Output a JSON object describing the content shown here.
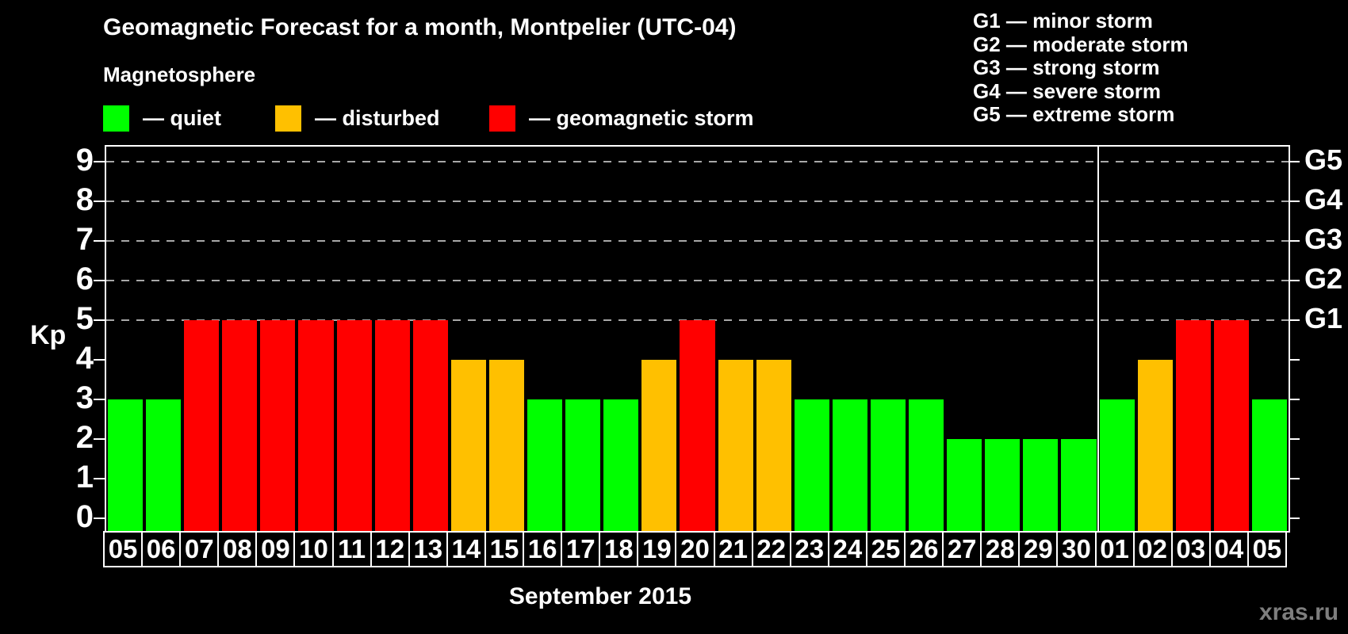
{
  "title": "Geomagnetic Forecast for a month, Montpelier (UTC-04)",
  "magnetosphere_label": "Magnetosphere",
  "legend": {
    "items": [
      {
        "label": "— quiet",
        "status": "quiet"
      },
      {
        "label": "— disturbed",
        "status": "disturbed"
      },
      {
        "label": "— geomagnetic storm",
        "status": "storm"
      }
    ]
  },
  "g_legend": {
    "items": [
      "G1 — minor storm",
      "G2 — moderate storm",
      "G3 — strong storm",
      "G4 — severe storm",
      "G5 — extreme storm"
    ]
  },
  "watermark": "xras.ru",
  "chart_data": {
    "type": "bar",
    "title": "Geomagnetic Forecast for a month, Montpelier (UTC-04)",
    "xlabel": "September 2015",
    "ylabel": "Kp",
    "ylim": [
      0,
      9
    ],
    "y_ticks": [
      0,
      1,
      2,
      3,
      4,
      5,
      6,
      7,
      8,
      9
    ],
    "grid_levels": [
      5,
      6,
      7,
      8,
      9
    ],
    "right_axis_labels": [
      {
        "kp": 5,
        "label": "G1"
      },
      {
        "kp": 6,
        "label": "G2"
      },
      {
        "kp": 7,
        "label": "G3"
      },
      {
        "kp": 8,
        "label": "G4"
      },
      {
        "kp": 9,
        "label": "G5"
      }
    ],
    "colors": {
      "quiet": "#00FF00",
      "disturbed": "#FFC000",
      "storm": "#FF0000",
      "axis": "#FFFFFF",
      "grid": "#A8A8A8",
      "background": "#000000",
      "watermark": "#7E7E7E"
    },
    "legend_position": "top-left",
    "grid": "dashed horizontal at G-levels only",
    "month_separator_after_index": 25,
    "bars": [
      {
        "day": "05",
        "kp": 3,
        "status": "quiet"
      },
      {
        "day": "06",
        "kp": 3,
        "status": "quiet"
      },
      {
        "day": "07",
        "kp": 5,
        "status": "storm"
      },
      {
        "day": "08",
        "kp": 5,
        "status": "storm"
      },
      {
        "day": "09",
        "kp": 5,
        "status": "storm"
      },
      {
        "day": "10",
        "kp": 5,
        "status": "storm"
      },
      {
        "day": "11",
        "kp": 5,
        "status": "storm"
      },
      {
        "day": "12",
        "kp": 5,
        "status": "storm"
      },
      {
        "day": "13",
        "kp": 5,
        "status": "storm"
      },
      {
        "day": "14",
        "kp": 4,
        "status": "disturbed"
      },
      {
        "day": "15",
        "kp": 4,
        "status": "disturbed"
      },
      {
        "day": "16",
        "kp": 3,
        "status": "quiet"
      },
      {
        "day": "17",
        "kp": 3,
        "status": "quiet"
      },
      {
        "day": "18",
        "kp": 3,
        "status": "quiet"
      },
      {
        "day": "19",
        "kp": 4,
        "status": "disturbed"
      },
      {
        "day": "20",
        "kp": 5,
        "status": "storm"
      },
      {
        "day": "21",
        "kp": 4,
        "status": "disturbed"
      },
      {
        "day": "22",
        "kp": 4,
        "status": "disturbed"
      },
      {
        "day": "23",
        "kp": 3,
        "status": "quiet"
      },
      {
        "day": "24",
        "kp": 3,
        "status": "quiet"
      },
      {
        "day": "25",
        "kp": 3,
        "status": "quiet"
      },
      {
        "day": "26",
        "kp": 3,
        "status": "quiet"
      },
      {
        "day": "27",
        "kp": 2,
        "status": "quiet"
      },
      {
        "day": "28",
        "kp": 2,
        "status": "quiet"
      },
      {
        "day": "29",
        "kp": 2,
        "status": "quiet"
      },
      {
        "day": "30",
        "kp": 2,
        "status": "quiet"
      },
      {
        "day": "01",
        "kp": 3,
        "status": "quiet"
      },
      {
        "day": "02",
        "kp": 4,
        "status": "disturbed"
      },
      {
        "day": "03",
        "kp": 5,
        "status": "storm"
      },
      {
        "day": "04",
        "kp": 5,
        "status": "storm"
      },
      {
        "day": "05",
        "kp": 3,
        "status": "quiet"
      }
    ]
  }
}
